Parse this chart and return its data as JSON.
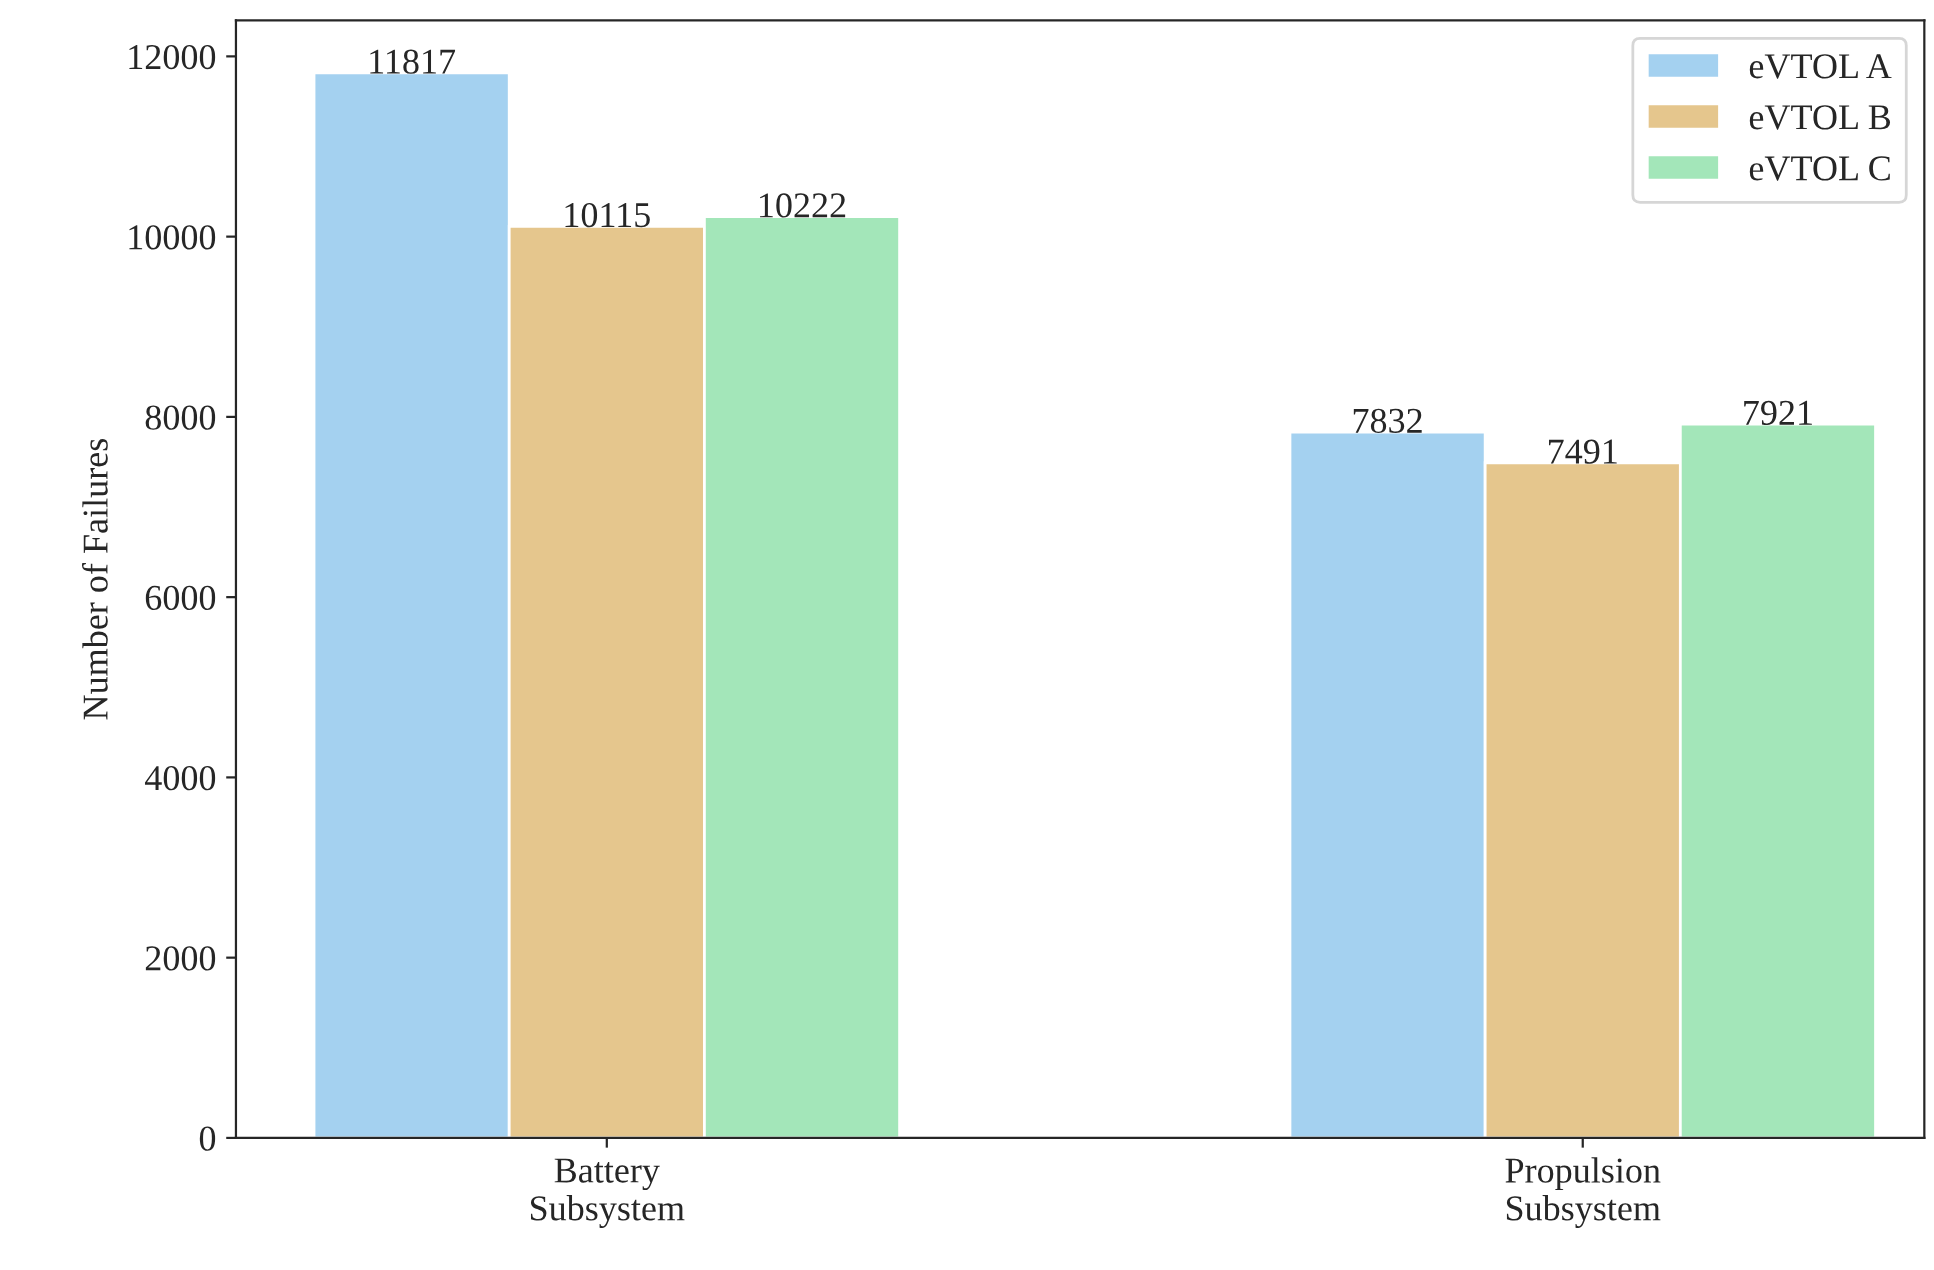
{
  "chart_data": {
    "type": "bar",
    "ylabel": "Number of Failures",
    "categories": [
      "Battery\nSubsystem",
      "Propulsion\nSubsystem"
    ],
    "series": [
      {
        "name": "eVTOL A",
        "color": "#a4d1f0",
        "values": [
          11817,
          7832
        ]
      },
      {
        "name": "eVTOL B",
        "color": "#e5c68d",
        "values": [
          10115,
          7491
        ]
      },
      {
        "name": "eVTOL C",
        "color": "#a3e6b9",
        "values": [
          10222,
          7921
        ]
      }
    ],
    "ylim": [
      0,
      12400
    ],
    "yticks": [
      0,
      2000,
      4000,
      6000,
      8000,
      10000,
      12000
    ],
    "data_labels": true,
    "legend": "top right",
    "grid": false
  }
}
